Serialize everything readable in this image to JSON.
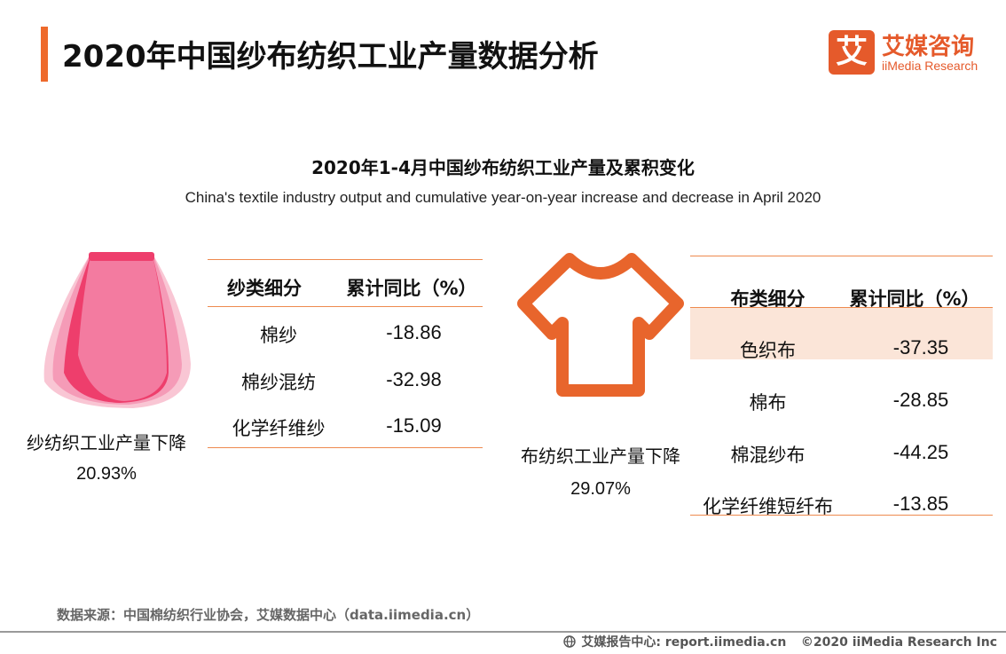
{
  "header": {
    "title": "2020年中国纱布纺织工业产量数据分析",
    "logo_mark": "艾",
    "logo_cn": "艾媒咨询",
    "logo_en": "iiMedia Research"
  },
  "chart": {
    "title": "2020年1-4月中国纱布纺织工业产量及累积变化",
    "subtitle": "China's textile industry output and cumulative year-on-year increase and decrease in April 2020"
  },
  "yarn": {
    "caption": "纱纺织工业产量下降",
    "percent": "20.93%",
    "header": {
      "category": "纱类细分",
      "value": "累计同比（%）"
    },
    "rows": [
      {
        "name": "棉纱",
        "value": "-18.86"
      },
      {
        "name": "棉纱混纺",
        "value": "-32.98"
      },
      {
        "name": "化学纤维纱",
        "value": "-15.09"
      }
    ]
  },
  "cloth": {
    "caption": "布纺织工业产量下降",
    "percent": "29.07%",
    "header": {
      "category": "布类细分",
      "value": "累计同比（%）"
    },
    "rows": [
      {
        "name": "色织布",
        "value": "-37.35"
      },
      {
        "name": "棉布",
        "value": "-28.85"
      },
      {
        "name": "棉混纱布",
        "value": "-44.25"
      },
      {
        "name": "化学纤维短纤布",
        "value": "-13.85"
      }
    ]
  },
  "footer": {
    "source": "数据来源：中国棉纺织行业协会，艾媒数据中心（data.iimedia.cn）",
    "report_center": "艾媒报告中心: report.iimedia.cn",
    "copyright": "©2020  iiMedia Research  Inc"
  },
  "colors": {
    "accent": "#ee6a2c",
    "table_rule": "#ee8a4f",
    "row_highlight": "#fbe5d8",
    "skirt_dark": "#ee3e6c",
    "skirt_mid": "#f37ba0",
    "skirt_light": "#f9c6d4",
    "shirt": "#e8652c"
  }
}
